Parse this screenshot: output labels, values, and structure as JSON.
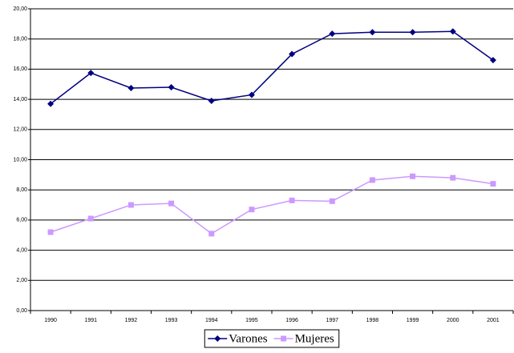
{
  "chart_data": {
    "type": "line",
    "categories": [
      "1990",
      "1991",
      "1992",
      "1993",
      "1994",
      "1995",
      "1996",
      "1997",
      "1998",
      "1999",
      "2000",
      "2001"
    ],
    "series": [
      {
        "name": "Varones",
        "color": "#000080",
        "marker": "diamond",
        "values": [
          13.7,
          15.75,
          14.75,
          14.8,
          13.9,
          14.3,
          17.0,
          18.35,
          18.45,
          18.45,
          18.5,
          16.6
        ]
      },
      {
        "name": "Mujeres",
        "color": "#cc99ff",
        "marker": "square",
        "values": [
          5.2,
          6.1,
          7.0,
          7.1,
          5.1,
          6.7,
          7.3,
          7.25,
          8.65,
          8.9,
          8.8,
          8.4
        ]
      }
    ],
    "ylim": [
      0,
      20
    ],
    "yticks": [
      {
        "value": 0,
        "label": "0,00"
      },
      {
        "value": 2,
        "label": "2,00"
      },
      {
        "value": 4,
        "label": "4,00"
      },
      {
        "value": 6,
        "label": "6,00"
      },
      {
        "value": 8,
        "label": "8,00"
      },
      {
        "value": 10,
        "label": "10,00"
      },
      {
        "value": 12,
        "label": "12,00"
      },
      {
        "value": 14,
        "label": "14,00"
      },
      {
        "value": 16,
        "label": "16,00"
      },
      {
        "value": 18,
        "label": "18,00"
      },
      {
        "value": 20,
        "label": "20,00"
      }
    ],
    "grid": true,
    "legend": "bottom"
  }
}
